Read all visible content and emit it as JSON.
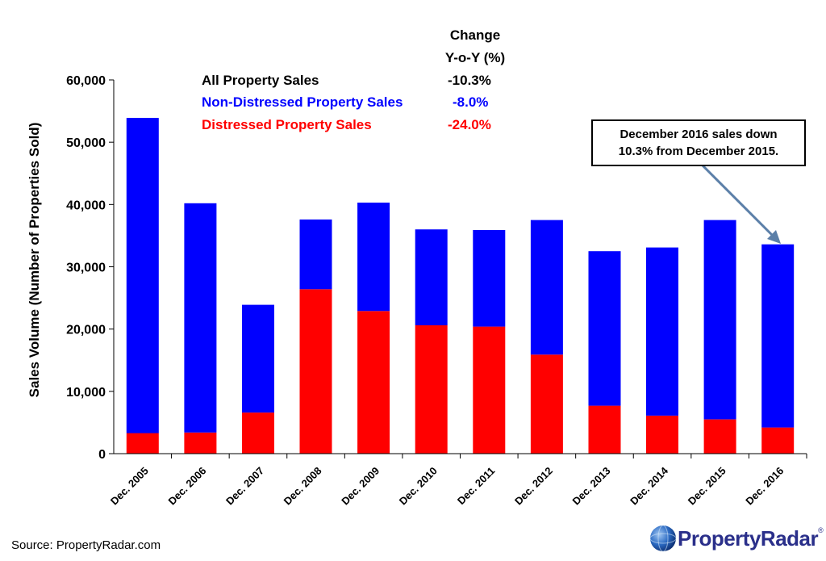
{
  "chart_data": {
    "type": "bar",
    "stacked": true,
    "categories": [
      "Dec. 2005",
      "Dec. 2006",
      "Dec. 2007",
      "Dec. 2008",
      "Dec. 2009",
      "Dec. 2010",
      "Dec. 2011",
      "Dec. 2012",
      "Dec. 2013",
      "Dec. 2014",
      "Dec. 2015",
      "Dec. 2016"
    ],
    "series": [
      {
        "name": "Distressed Property Sales",
        "color": "#ff0000",
        "values": [
          3300,
          3400,
          6600,
          26400,
          22900,
          20600,
          20400,
          15900,
          7700,
          6100,
          5500,
          4200
        ]
      },
      {
        "name": "Non-Distressed Property Sales",
        "color": "#0000ff",
        "values": [
          50600,
          36800,
          17300,
          11200,
          17400,
          15400,
          15500,
          21600,
          24800,
          27000,
          32000,
          29400
        ]
      }
    ],
    "ylabel": "Sales Volume (Number of Properties Sold)",
    "ylim": [
      0,
      60000
    ],
    "yticks": [
      0,
      10000,
      20000,
      30000,
      40000,
      50000,
      60000
    ],
    "ytick_labels": [
      "0",
      "10,000",
      "20,000",
      "30,000",
      "40,000",
      "50,000",
      "60,000"
    ],
    "grid": false
  },
  "legend": {
    "change_header_line1": "Change",
    "change_header_line2": "Y-o-Y (%)",
    "rows": [
      {
        "label": "All Property Sales",
        "change": "-10.3%",
        "color": "#000000"
      },
      {
        "label": "Non-Distressed Property Sales",
        "change": "-8.0%",
        "color": "#0000ff"
      },
      {
        "label": "Distressed Property Sales",
        "change": "-24.0%",
        "color": "#ff0000"
      }
    ]
  },
  "callout": {
    "line1": "December 2016 sales down",
    "line2": "10.3% from December 2015."
  },
  "source": "Source: PropertyRadar.com",
  "logo": {
    "name": "PropertyRadar",
    "tm": "®",
    "icon": "globe-icon"
  }
}
